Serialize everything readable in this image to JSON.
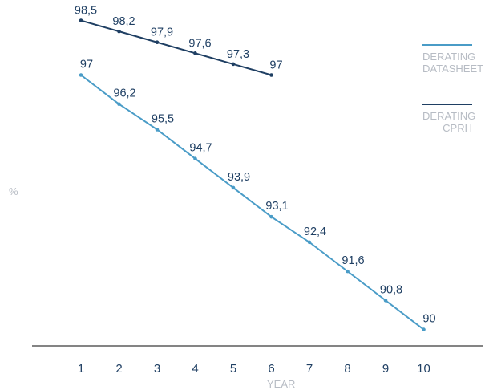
{
  "chart_data": {
    "type": "line",
    "x": [
      1,
      2,
      3,
      4,
      5,
      6,
      7,
      8,
      9,
      10
    ],
    "xlabel": "YEAR",
    "ylabel": "%",
    "ylim": [
      88.5,
      99.0
    ],
    "grid": false,
    "legend_position": "right",
    "series": [
      {
        "name": "DERATING\nDATASHEET",
        "color": "#4a9cc7",
        "x": [
          1,
          2,
          3,
          4,
          5,
          6,
          7,
          8,
          9,
          10
        ],
        "values": [
          97,
          96.2,
          95.5,
          94.7,
          93.9,
          93.1,
          92.4,
          91.6,
          90.8,
          90
        ],
        "labels": [
          "97",
          "96,2",
          "95,5",
          "94,7",
          "93,9",
          "93,1",
          "92,4",
          "91,6",
          "90,8",
          "90"
        ]
      },
      {
        "name": "DERATING\nCPRH",
        "color": "#1f3f63",
        "x": [
          1,
          2,
          3,
          4,
          5,
          6
        ],
        "values": [
          98.5,
          98.2,
          97.9,
          97.6,
          97.3,
          97
        ],
        "labels": [
          "98,5",
          "98,2",
          "97,9",
          "97,6",
          "97,3",
          "97"
        ]
      }
    ]
  },
  "tick_color": "#1f3f63",
  "axis_color": "#3a3a3a"
}
